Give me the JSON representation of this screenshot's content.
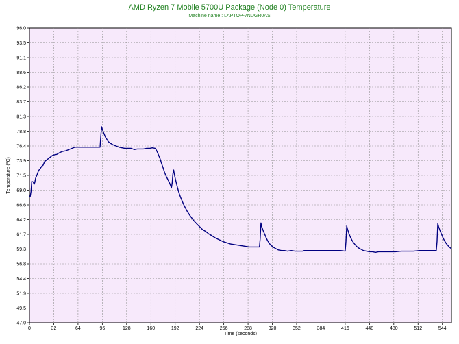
{
  "chart_data": {
    "type": "line",
    "title": "AMD Ryzen 7 Mobile 5700U Package (Node 0) Temperature",
    "subtitle": "Machine name : LAPTOP-7NUGR0AS",
    "xlabel": "Time (seconds)",
    "ylabel": "Temperature (°C)",
    "xlim": [
      0,
      556
    ],
    "ylim": [
      47.0,
      96.0
    ],
    "x_ticks": [
      "0",
      "32",
      "64",
      "96",
      "128",
      "160",
      "192",
      "224",
      "256",
      "288",
      "320",
      "352",
      "384",
      "416",
      "448",
      "480",
      "512",
      "544"
    ],
    "y_ticks": [
      "96.0",
      "93.5",
      "91.1",
      "88.6",
      "86.2",
      "83.7",
      "81.3",
      "78.8",
      "76.4",
      "73.9",
      "71.5",
      "69.0",
      "66.6",
      "64.2",
      "61.7",
      "59.3",
      "56.8",
      "54.4",
      "51.9",
      "49.5",
      "47.0"
    ],
    "grid": true,
    "colors": {
      "background": "#f7e9fb",
      "line": "#000080",
      "title": "#208020",
      "grid": "#909090"
    },
    "series": [
      {
        "name": "",
        "points": [
          [
            0,
            68.0
          ],
          [
            1,
            68.0
          ],
          [
            2,
            68.8
          ],
          [
            3,
            70.5
          ],
          [
            5,
            70.4
          ],
          [
            6,
            70.0
          ],
          [
            7,
            70.3
          ],
          [
            8,
            71.0
          ],
          [
            10,
            71.6
          ],
          [
            12,
            72.3
          ],
          [
            14,
            72.6
          ],
          [
            16,
            73.0
          ],
          [
            18,
            73.2
          ],
          [
            20,
            73.8
          ],
          [
            22,
            74.0
          ],
          [
            24,
            74.2
          ],
          [
            26,
            74.4
          ],
          [
            28,
            74.6
          ],
          [
            30,
            74.8
          ],
          [
            32,
            74.9
          ],
          [
            36,
            75.0
          ],
          [
            40,
            75.3
          ],
          [
            44,
            75.5
          ],
          [
            48,
            75.6
          ],
          [
            52,
            75.8
          ],
          [
            56,
            76.0
          ],
          [
            60,
            76.2
          ],
          [
            64,
            76.2
          ],
          [
            72,
            76.2
          ],
          [
            80,
            76.2
          ],
          [
            88,
            76.2
          ],
          [
            93,
            76.2
          ],
          [
            94,
            78.0
          ],
          [
            95,
            79.6
          ],
          [
            96,
            79.2
          ],
          [
            98,
            78.5
          ],
          [
            100,
            77.9
          ],
          [
            102,
            77.5
          ],
          [
            104,
            77.1
          ],
          [
            106,
            76.9
          ],
          [
            110,
            76.6
          ],
          [
            114,
            76.4
          ],
          [
            118,
            76.2
          ],
          [
            122,
            76.1
          ],
          [
            126,
            76.0
          ],
          [
            130,
            76.0
          ],
          [
            134,
            76.0
          ],
          [
            138,
            75.8
          ],
          [
            142,
            75.9
          ],
          [
            146,
            75.9
          ],
          [
            150,
            75.9
          ],
          [
            154,
            76.0
          ],
          [
            158,
            76.0
          ],
          [
            162,
            76.1
          ],
          [
            166,
            76.0
          ],
          [
            168,
            75.5
          ],
          [
            170,
            74.9
          ],
          [
            172,
            74.3
          ],
          [
            174,
            73.5
          ],
          [
            176,
            72.8
          ],
          [
            178,
            72.0
          ],
          [
            180,
            71.4
          ],
          [
            182,
            70.9
          ],
          [
            184,
            70.4
          ],
          [
            186,
            69.8
          ],
          [
            187,
            69.4
          ],
          [
            188,
            70.2
          ],
          [
            189,
            71.8
          ],
          [
            190,
            72.4
          ],
          [
            191,
            71.6
          ],
          [
            193,
            70.5
          ],
          [
            195,
            69.5
          ],
          [
            197,
            68.6
          ],
          [
            199,
            67.9
          ],
          [
            201,
            67.3
          ],
          [
            203,
            66.7
          ],
          [
            205,
            66.2
          ],
          [
            208,
            65.5
          ],
          [
            211,
            64.9
          ],
          [
            214,
            64.4
          ],
          [
            217,
            63.9
          ],
          [
            220,
            63.5
          ],
          [
            224,
            63.0
          ],
          [
            228,
            62.5
          ],
          [
            232,
            62.2
          ],
          [
            236,
            61.8
          ],
          [
            240,
            61.5
          ],
          [
            245,
            61.1
          ],
          [
            250,
            60.8
          ],
          [
            255,
            60.5
          ],
          [
            260,
            60.3
          ],
          [
            265,
            60.1
          ],
          [
            270,
            60.0
          ],
          [
            275,
            59.9
          ],
          [
            280,
            59.8
          ],
          [
            285,
            59.7
          ],
          [
            290,
            59.6
          ],
          [
            295,
            59.6
          ],
          [
            300,
            59.6
          ],
          [
            303,
            59.6
          ],
          [
            304,
            61.0
          ],
          [
            305,
            63.6
          ],
          [
            306,
            63.0
          ],
          [
            308,
            62.3
          ],
          [
            310,
            61.7
          ],
          [
            312,
            61.1
          ],
          [
            314,
            60.6
          ],
          [
            316,
            60.2
          ],
          [
            318,
            59.9
          ],
          [
            320,
            59.7
          ],
          [
            322,
            59.5
          ],
          [
            325,
            59.3
          ],
          [
            328,
            59.1
          ],
          [
            332,
            59.0
          ],
          [
            336,
            59.0
          ],
          [
            340,
            58.9
          ],
          [
            345,
            59.0
          ],
          [
            350,
            58.9
          ],
          [
            355,
            58.9
          ],
          [
            360,
            58.9
          ],
          [
            362,
            59.0
          ],
          [
            366,
            59.0
          ],
          [
            372,
            59.0
          ],
          [
            380,
            59.0
          ],
          [
            390,
            59.0
          ],
          [
            400,
            59.0
          ],
          [
            410,
            59.0
          ],
          [
            416,
            58.9
          ],
          [
            417,
            60.5
          ],
          [
            418,
            63.1
          ],
          [
            419,
            62.6
          ],
          [
            421,
            61.8
          ],
          [
            423,
            61.2
          ],
          [
            425,
            60.7
          ],
          [
            427,
            60.3
          ],
          [
            429,
            60.0
          ],
          [
            431,
            59.7
          ],
          [
            434,
            59.4
          ],
          [
            437,
            59.2
          ],
          [
            440,
            59.0
          ],
          [
            444,
            58.9
          ],
          [
            448,
            58.8
          ],
          [
            452,
            58.8
          ],
          [
            456,
            58.7
          ],
          [
            460,
            58.8
          ],
          [
            464,
            58.8
          ],
          [
            470,
            58.8
          ],
          [
            476,
            58.8
          ],
          [
            482,
            58.8
          ],
          [
            490,
            58.9
          ],
          [
            498,
            58.9
          ],
          [
            506,
            58.9
          ],
          [
            514,
            59.0
          ],
          [
            522,
            59.0
          ],
          [
            530,
            59.0
          ],
          [
            536,
            59.0
          ],
          [
            537,
            60.5
          ],
          [
            538,
            63.5
          ],
          [
            539,
            63.0
          ],
          [
            541,
            62.3
          ],
          [
            543,
            61.7
          ],
          [
            545,
            61.1
          ],
          [
            547,
            60.6
          ],
          [
            549,
            60.2
          ],
          [
            551,
            59.9
          ],
          [
            553,
            59.6
          ],
          [
            555,
            59.4
          ],
          [
            556,
            59.3
          ]
        ]
      }
    ]
  }
}
